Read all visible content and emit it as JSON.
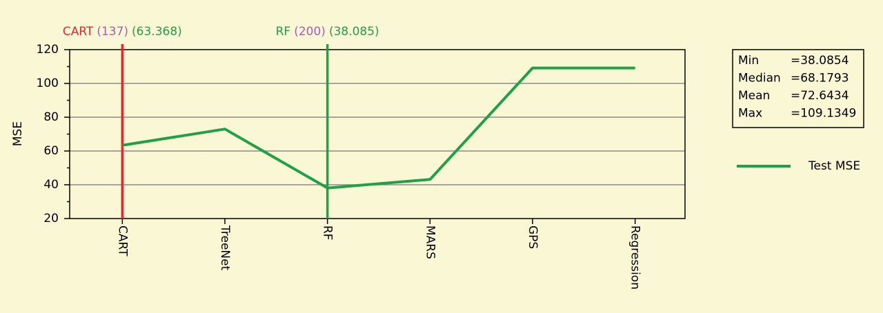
{
  "chart_data": {
    "type": "line",
    "y_label": "MSE",
    "categories": [
      "CART",
      "TreeNet",
      "RF",
      "MARS",
      "GPS",
      "Regression"
    ],
    "series": [
      {
        "name": "Test MSE",
        "color": "#21a04a",
        "values": [
          63.368,
          72.9906,
          38.085,
          43.146,
          109.1349,
          109.1349
        ]
      }
    ],
    "ylim": [
      20,
      120
    ],
    "yticks": [
      20,
      40,
      60,
      80,
      100,
      120
    ],
    "minor_yticks": [
      30,
      50,
      70,
      90,
      110
    ],
    "grid": true,
    "markers": [
      {
        "category": "CART",
        "count": "(137)",
        "value": "(63.368)",
        "color": "#e8262b"
      },
      {
        "category": "RF",
        "count": "(200)",
        "value": "(38.085)",
        "color": "#21a04a"
      }
    ],
    "stats": [
      {
        "name": "Min",
        "value": "=38.0854"
      },
      {
        "name": "Median",
        "value": "=68.1793"
      },
      {
        "name": "Mean",
        "value": "=72.6434"
      },
      {
        "name": "Max",
        "value": "=109.1349"
      }
    ]
  }
}
